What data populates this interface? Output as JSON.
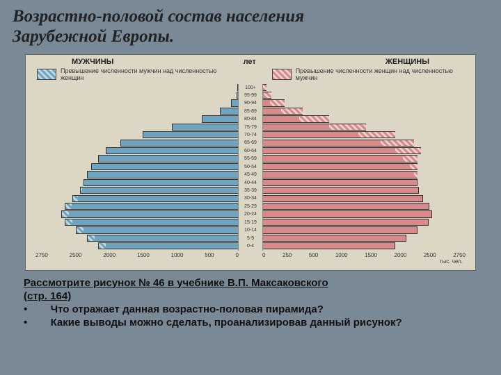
{
  "title_line1": "Возрастно-половой состав населения",
  "title_line2": "Зарубежной Европы.",
  "chart": {
    "type": "population-pyramid",
    "background_color": "#dcd6c4",
    "male_color": "#6fa4c0",
    "female_color": "#d88a8a",
    "header_left": "МУЖЧИНЫ",
    "header_center": "лет",
    "header_right": "ЖЕНЩИНЫ",
    "legend_left": "Превышение численности мужчин над численностью женщин",
    "legend_right": "Превышение численности женщин над численностью мужчин",
    "xunit": "тыс. чел.",
    "xticks_left": [
      "2750",
      "2500",
      "2000",
      "1500",
      "1000",
      "500",
      "0"
    ],
    "xticks_right": [
      "0",
      "250",
      "500",
      "1000",
      "1500",
      "2000",
      "2500",
      "2750"
    ],
    "xmax": 2750,
    "age_labels": [
      "100+",
      "95-99",
      "90-94",
      "85-89",
      "80-84",
      "75-79",
      "70-74",
      "65-69",
      "60-64",
      "55-59",
      "50-54",
      "45-49",
      "40-44",
      "35-39",
      "30-34",
      "25-29",
      "20-24",
      "15-19",
      "10-14",
      "5-9",
      "0-4"
    ],
    "bars": [
      {
        "m": 10,
        "f": 60,
        "ef": 50
      },
      {
        "m": 30,
        "f": 120,
        "ef": 90
      },
      {
        "m": 100,
        "f": 300,
        "ef": 200
      },
      {
        "m": 250,
        "f": 550,
        "ef": 300
      },
      {
        "m": 500,
        "f": 900,
        "ef": 400
      },
      {
        "m": 900,
        "f": 1400,
        "ef": 500
      },
      {
        "m": 1300,
        "f": 1800,
        "ef": 500
      },
      {
        "m": 1600,
        "f": 2050,
        "ef": 450
      },
      {
        "m": 1800,
        "f": 2150,
        "ef": 350
      },
      {
        "m": 1900,
        "f": 2100,
        "ef": 200
      },
      {
        "m": 2000,
        "f": 2100,
        "ef": 100
      },
      {
        "m": 2050,
        "f": 2100,
        "ef": 50
      },
      {
        "m": 2100,
        "f": 2100,
        "ef": 0
      },
      {
        "m": 2150,
        "f": 2120,
        "em": 30
      },
      {
        "m": 2250,
        "f": 2180,
        "em": 70
      },
      {
        "m": 2350,
        "f": 2260,
        "em": 90
      },
      {
        "m": 2400,
        "f": 2300,
        "em": 100
      },
      {
        "m": 2350,
        "f": 2250,
        "em": 100
      },
      {
        "m": 2200,
        "f": 2100,
        "em": 100
      },
      {
        "m": 2050,
        "f": 1950,
        "em": 100
      },
      {
        "m": 1900,
        "f": 1800,
        "em": 100
      }
    ]
  },
  "caption": {
    "line1": "Рассмотрите  рисунок  № 46  в учебнике В.П. Максаковского",
    "line2": "(стр. 164)",
    "bullet1": "Что отражает данная возрастно-половая пирамида?",
    "bullet2": "Какие выводы можно сделать, проанализировав данный рисунок?"
  }
}
